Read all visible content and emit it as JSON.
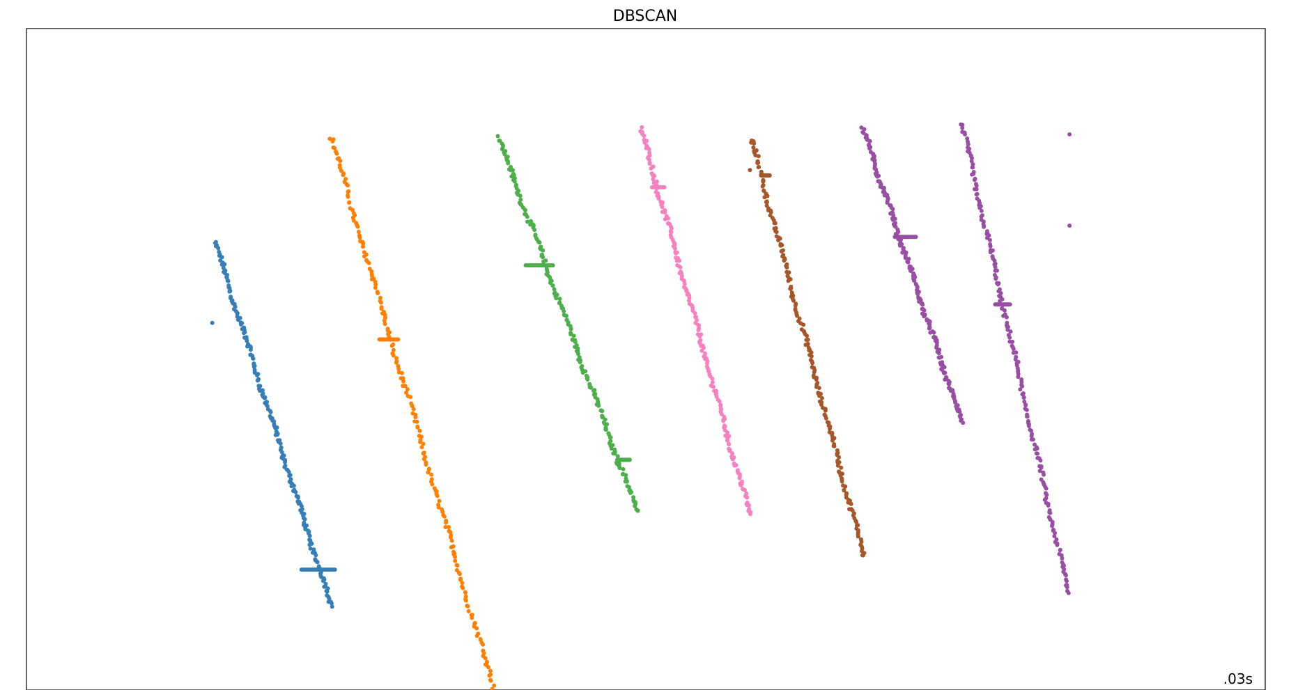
{
  "chart_data": {
    "type": "scatter",
    "title": "DBSCAN",
    "xlabel": "",
    "ylabel": "",
    "annotation": ".03s",
    "axis_ticks": "off",
    "grid": false,
    "legend": "none",
    "xlim": [
      0,
      100
    ],
    "ylim": [
      0,
      100
    ],
    "clusters": [
      {
        "color": "#377eb8",
        "start": [
          15.2,
          67.7
        ],
        "end": [
          24.6,
          12.8
        ],
        "flats": [
          [
            22.2,
            24.9,
            18.2
          ]
        ],
        "extra_points": [
          [
            15.0,
            55.5
          ]
        ]
      },
      {
        "color": "#ff7f00",
        "start": [
          24.6,
          83.5
        ],
        "end": [
          37.7,
          0.4
        ],
        "flats": [
          [
            28.5,
            30.0,
            53.0
          ]
        ],
        "extra_points": []
      },
      {
        "color": "#4daf4a",
        "start": [
          38.1,
          83.5
        ],
        "end": [
          49.3,
          27.0
        ],
        "flats": [
          [
            40.3,
            42.5,
            64.2
          ],
          [
            47.7,
            48.7,
            34.8
          ]
        ],
        "extra_points": []
      },
      {
        "color": "#f781bf",
        "start": [
          49.6,
          84.8
        ],
        "end": [
          58.4,
          26.5
        ],
        "flats": [
          [
            50.5,
            51.5,
            76.0
          ]
        ],
        "extra_points": []
      },
      {
        "color": "#a65628",
        "start": [
          58.5,
          83.3
        ],
        "end": [
          67.6,
          20.3
        ],
        "flats": [
          [
            59.3,
            60.0,
            77.8
          ]
        ],
        "extra_points": [
          [
            58.4,
            78.6
          ]
        ]
      },
      {
        "color": "#984ea3",
        "start": [
          67.5,
          85.0
        ],
        "end": [
          75.5,
          40.5
        ],
        "flats": [
          [
            70.1,
            71.8,
            68.5
          ]
        ],
        "extra_points": []
      },
      {
        "color": "#984ea3",
        "start": [
          75.5,
          85.5
        ],
        "end": [
          84.1,
          14.6
        ],
        "flats": [
          [
            78.2,
            79.4,
            58.3
          ]
        ],
        "extra_points": [
          [
            84.2,
            84.0
          ],
          [
            84.2,
            70.2
          ]
        ]
      }
    ]
  }
}
